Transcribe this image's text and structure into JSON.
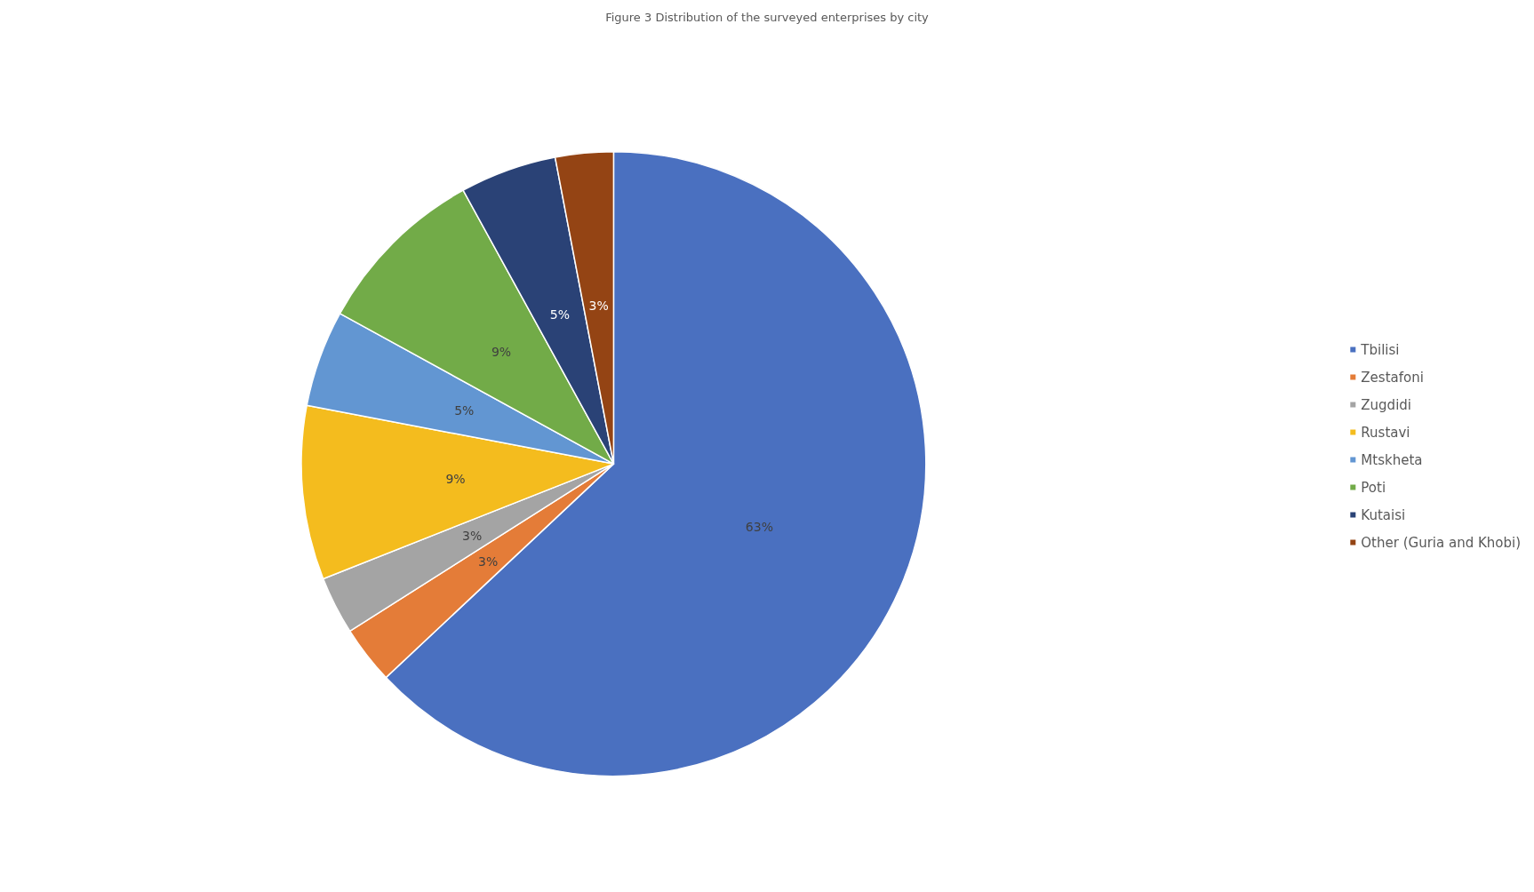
{
  "chart_data": {
    "type": "pie",
    "title": "Figure 3 Distribution of the surveyed enterprises by city",
    "categories": [
      "Tbilisi",
      "Zestafoni",
      "Zugdidi",
      "Rustavi",
      "Mtskheta",
      "Poti",
      "Kutaisi",
      "Other (Guria and Khobi)"
    ],
    "values": [
      63,
      3,
      3,
      9,
      5,
      9,
      5,
      3
    ],
    "value_labels": [
      "63%",
      "3%",
      "3%",
      "9%",
      "5%",
      "9%",
      "5%",
      "3%"
    ],
    "colors": [
      "#4a70c0",
      "#e47c38",
      "#a4a4a4",
      "#f4bc1e",
      "#6296d2",
      "#72ab48",
      "#2a4276",
      "#944414"
    ],
    "legend": "right"
  }
}
